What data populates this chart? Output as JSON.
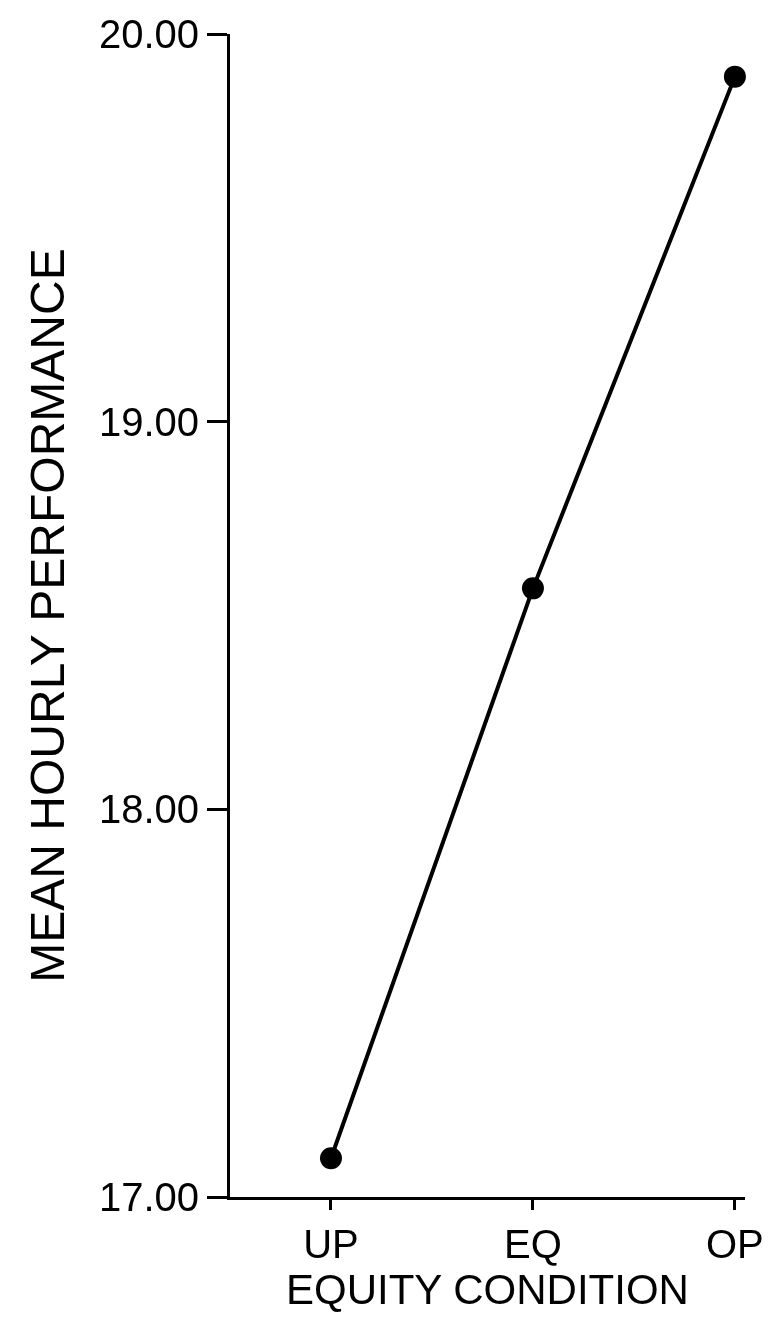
{
  "chart_data": {
    "type": "line",
    "xlabel": "EQUITY CONDITION",
    "ylabel": "MEAN HOURLY PERFORMANCE",
    "categories": [
      "UP",
      "EQ",
      "OP"
    ],
    "series": [
      {
        "color": "#000000",
        "values": [
          17.1,
          18.57,
          19.89
        ]
      }
    ],
    "ylim": [
      17,
      20
    ],
    "yticks": [
      {
        "value": 17,
        "label": "17.00"
      },
      {
        "value": 18,
        "label": "18.00"
      },
      {
        "value": 19,
        "label": "19.00"
      },
      {
        "value": 20,
        "label": "20.00"
      }
    ],
    "marker": "circle",
    "line_style": "solid"
  }
}
